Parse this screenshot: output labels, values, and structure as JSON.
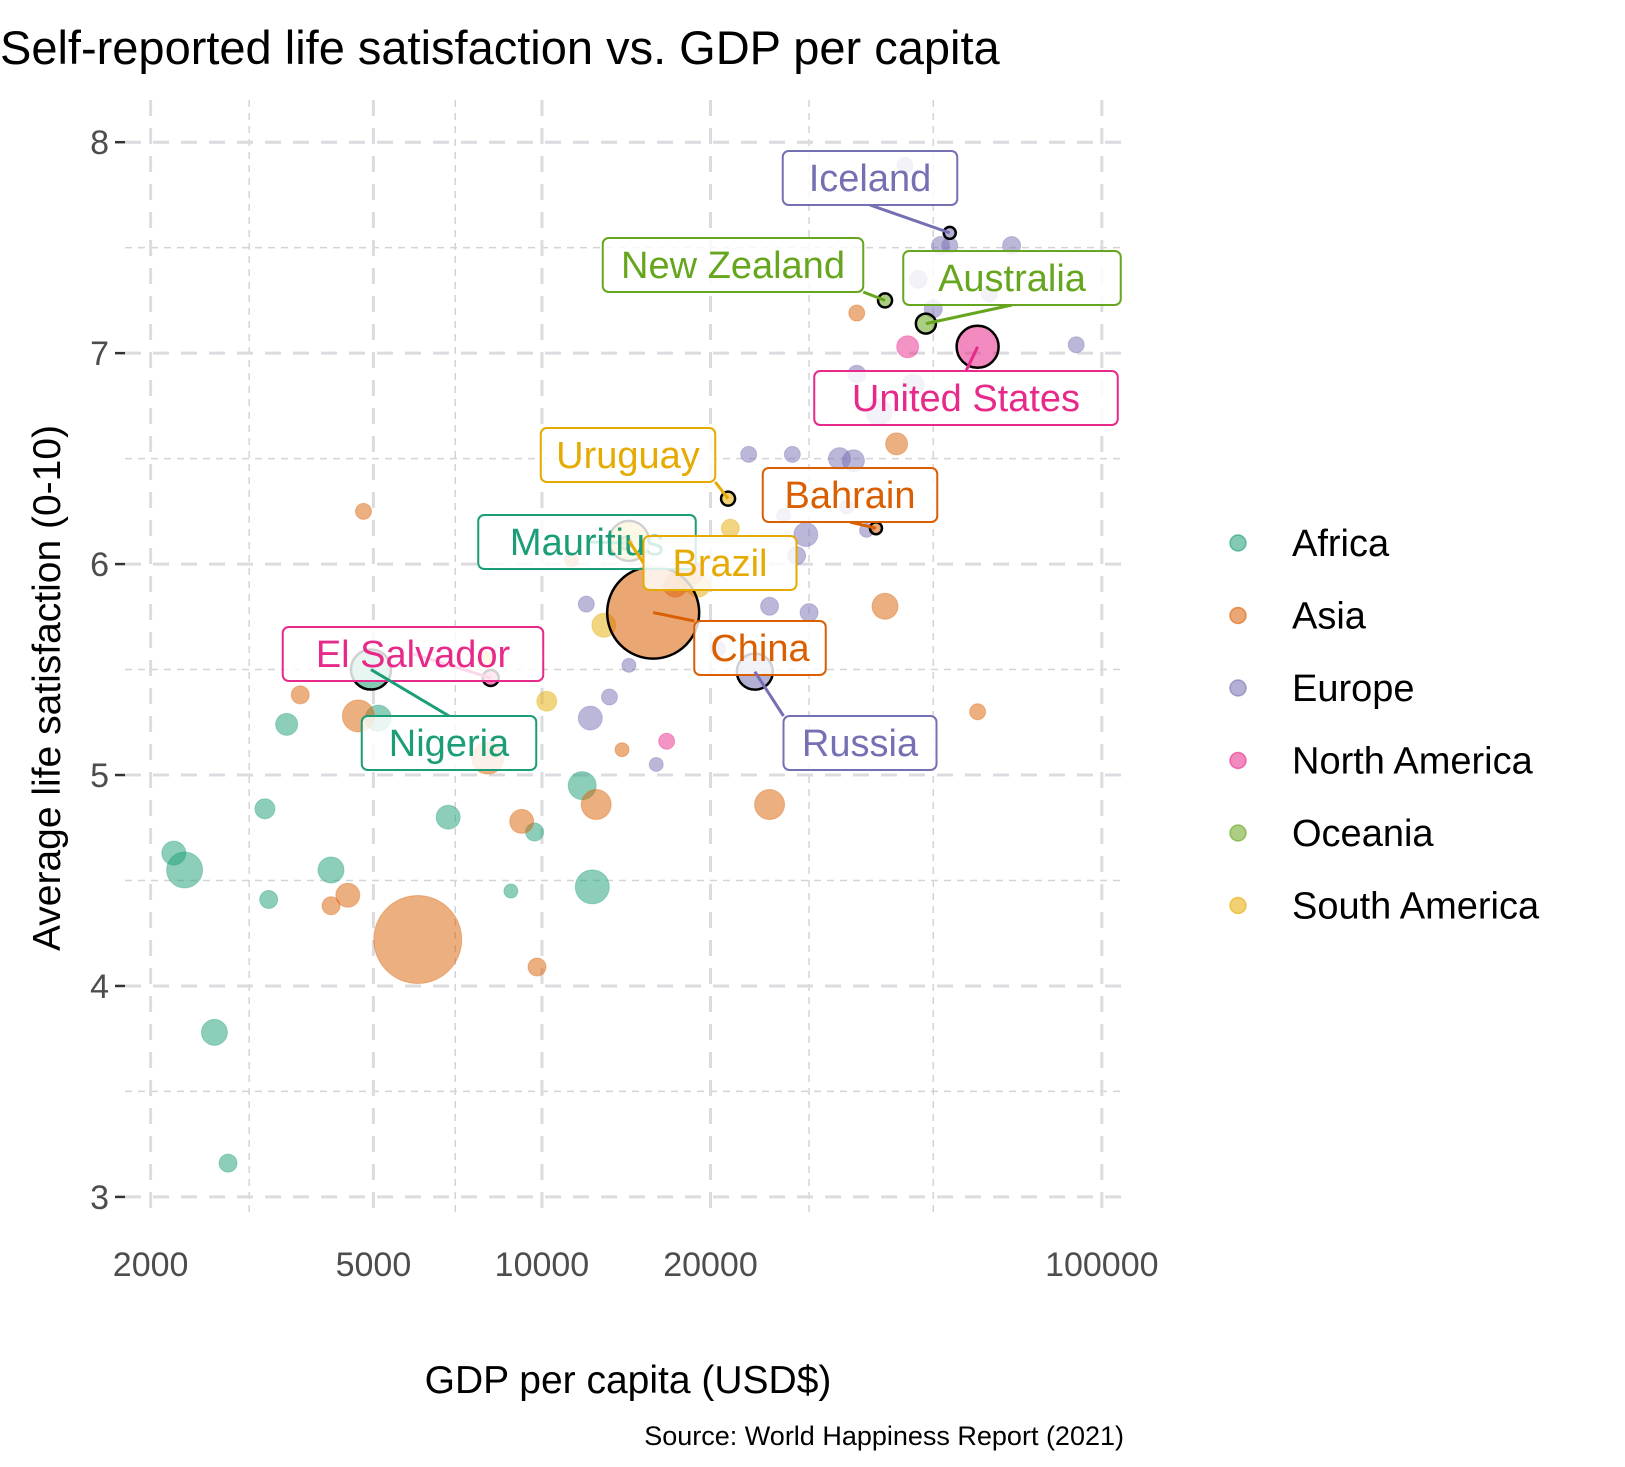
{
  "chart_data": {
    "type": "scatter",
    "title": "Self-reported life satisfaction vs. GDP per capita",
    "xlabel": "GDP per capita (USD$)",
    "ylabel": "Average life satisfaction (0-10)",
    "caption": "Source: World Happiness Report (2021)",
    "x_scale": "log10",
    "xlim": [
      1800,
      110000
    ],
    "ylim": [
      2.9,
      8.2
    ],
    "x_ticks": [
      2000,
      5000,
      10000,
      20000,
      100000
    ],
    "x_tick_labels": [
      "2000",
      "5000",
      "10000",
      "20000",
      "100000"
    ],
    "y_ticks": [
      3,
      4,
      5,
      6,
      7,
      8
    ],
    "y_tick_labels": [
      "3",
      "4",
      "5",
      "6",
      "7",
      "8"
    ],
    "grid": true,
    "legend_position": "right",
    "size_encodes": "population (unlabeled)",
    "series": [
      {
        "name": "Africa",
        "color": "#1B9E77",
        "points": [
          {
            "x": 2200,
            "y": 4.63,
            "s": 12
          },
          {
            "x": 2300,
            "y": 4.55,
            "s": 18
          },
          {
            "x": 2600,
            "y": 3.78,
            "s": 13
          },
          {
            "x": 2750,
            "y": 3.16,
            "s": 9
          },
          {
            "x": 3200,
            "y": 4.84,
            "s": 10
          },
          {
            "x": 3250,
            "y": 4.41,
            "s": 9
          },
          {
            "x": 3500,
            "y": 5.24,
            "s": 11
          },
          {
            "x": 4200,
            "y": 4.55,
            "s": 13
          },
          {
            "x": 5100,
            "y": 5.27,
            "s": 13
          },
          {
            "x": 6800,
            "y": 4.8,
            "s": 12
          },
          {
            "x": 8800,
            "y": 4.45,
            "s": 7
          },
          {
            "x": 9700,
            "y": 4.73,
            "s": 9
          },
          {
            "x": 11800,
            "y": 4.95,
            "s": 14
          },
          {
            "x": 12300,
            "y": 4.47,
            "s": 17
          }
        ]
      },
      {
        "name": "Asia",
        "color": "#D95F02",
        "points": [
          {
            "x": 3700,
            "y": 5.38,
            "s": 9
          },
          {
            "x": 4200,
            "y": 4.38,
            "s": 9
          },
          {
            "x": 4500,
            "y": 4.43,
            "s": 12
          },
          {
            "x": 4700,
            "y": 5.28,
            "s": 16
          },
          {
            "x": 4800,
            "y": 6.25,
            "s": 8
          },
          {
            "x": 6000,
            "y": 4.22,
            "s": 44
          },
          {
            "x": 8000,
            "y": 5.08,
            "s": 16
          },
          {
            "x": 9200,
            "y": 4.78,
            "s": 12
          },
          {
            "x": 9800,
            "y": 4.09,
            "s": 9
          },
          {
            "x": 11300,
            "y": 6.02,
            "s": 7
          },
          {
            "x": 12500,
            "y": 4.86,
            "s": 15
          },
          {
            "x": 13900,
            "y": 5.12,
            "s": 7
          },
          {
            "x": 17300,
            "y": 5.9,
            "s": 12
          },
          {
            "x": 25500,
            "y": 4.86,
            "s": 15
          },
          {
            "x": 36500,
            "y": 7.19,
            "s": 8
          },
          {
            "x": 41000,
            "y": 5.8,
            "s": 13
          },
          {
            "x": 43000,
            "y": 6.57,
            "s": 11
          },
          {
            "x": 60000,
            "y": 5.3,
            "s": 8
          }
        ]
      },
      {
        "name": "Europe",
        "color": "#7570B3",
        "points": [
          {
            "x": 12000,
            "y": 5.81,
            "s": 8
          },
          {
            "x": 12200,
            "y": 5.27,
            "s": 12
          },
          {
            "x": 13200,
            "y": 5.37,
            "s": 8
          },
          {
            "x": 14300,
            "y": 5.52,
            "s": 7
          },
          {
            "x": 16000,
            "y": 5.05,
            "s": 7
          },
          {
            "x": 20600,
            "y": 5.6,
            "s": 8
          },
          {
            "x": 23400,
            "y": 6.52,
            "s": 8
          },
          {
            "x": 25500,
            "y": 5.8,
            "s": 9
          },
          {
            "x": 27000,
            "y": 6.23,
            "s": 7
          },
          {
            "x": 28000,
            "y": 6.52,
            "s": 8
          },
          {
            "x": 28500,
            "y": 6.04,
            "s": 9
          },
          {
            "x": 29600,
            "y": 6.14,
            "s": 12
          },
          {
            "x": 30000,
            "y": 5.77,
            "s": 9
          },
          {
            "x": 34000,
            "y": 6.5,
            "s": 11
          },
          {
            "x": 35000,
            "y": 6.27,
            "s": 7
          },
          {
            "x": 36000,
            "y": 6.49,
            "s": 11
          },
          {
            "x": 36500,
            "y": 6.9,
            "s": 9
          },
          {
            "x": 38000,
            "y": 6.16,
            "s": 7
          },
          {
            "x": 40000,
            "y": 6.72,
            "s": 13
          },
          {
            "x": 44500,
            "y": 7.89,
            "s": 8
          },
          {
            "x": 46000,
            "y": 6.85,
            "s": 11
          },
          {
            "x": 47000,
            "y": 7.35,
            "s": 9
          },
          {
            "x": 50000,
            "y": 7.21,
            "s": 9
          },
          {
            "x": 51500,
            "y": 7.51,
            "s": 9
          },
          {
            "x": 53500,
            "y": 7.51,
            "s": 8
          },
          {
            "x": 63000,
            "y": 7.28,
            "s": 8
          },
          {
            "x": 69000,
            "y": 7.51,
            "s": 9
          },
          {
            "x": 90000,
            "y": 7.04,
            "s": 8
          }
        ]
      },
      {
        "name": "North America",
        "color": "#E7298A",
        "points": [
          {
            "x": 16700,
            "y": 5.16,
            "s": 8
          },
          {
            "x": 18500,
            "y": 5.96,
            "s": 12
          },
          {
            "x": 45000,
            "y": 7.03,
            "s": 11
          }
        ]
      },
      {
        "name": "Oceania",
        "color": "#66A61E",
        "points": []
      },
      {
        "name": "South America",
        "color": "#E6AB02",
        "points": [
          {
            "x": 7900,
            "y": 5.55,
            "s": 8
          },
          {
            "x": 10200,
            "y": 5.35,
            "s": 10
          },
          {
            "x": 12900,
            "y": 5.71,
            "s": 12
          },
          {
            "x": 18000,
            "y": 5.92,
            "s": 11
          },
          {
            "x": 19000,
            "y": 5.9,
            "s": 12
          },
          {
            "x": 21700,
            "y": 6.17,
            "s": 9
          }
        ]
      }
    ],
    "highlighted": [
      {
        "country": "Iceland",
        "region": "Europe",
        "x": 53500,
        "y": 7.57,
        "s": 6
      },
      {
        "country": "New Zealand",
        "region": "Oceania",
        "x": 41000,
        "y": 7.25,
        "s": 7
      },
      {
        "country": "Australia",
        "region": "Oceania",
        "x": 48500,
        "y": 7.14,
        "s": 10
      },
      {
        "country": "United States",
        "region": "North America",
        "x": 60000,
        "y": 7.03,
        "s": 21
      },
      {
        "country": "Uruguay",
        "region": "South America",
        "x": 21500,
        "y": 6.31,
        "s": 7
      },
      {
        "country": "Bahrain",
        "region": "Asia",
        "x": 39500,
        "y": 6.17,
        "s": 6
      },
      {
        "country": "Mauritius",
        "region": "Africa",
        "x": 14100,
        "y": 6.1,
        "s": 6
      },
      {
        "country": "Brazil",
        "region": "South America",
        "x": 14300,
        "y": 6.11,
        "s": 20
      },
      {
        "country": "China",
        "region": "Asia",
        "x": 15800,
        "y": 5.77,
        "s": 46
      },
      {
        "country": "El Salvador",
        "region": "North America",
        "x": 8100,
        "y": 5.46,
        "s": 8
      },
      {
        "country": "Nigeria",
        "region": "Africa",
        "x": 4950,
        "y": 5.5,
        "s": 20
      },
      {
        "country": "Russia",
        "region": "Europe",
        "x": 24000,
        "y": 5.49,
        "s": 18
      }
    ],
    "legend": {
      "entries": [
        "Africa",
        "Asia",
        "Europe",
        "North America",
        "Oceania",
        "South America"
      ]
    }
  }
}
